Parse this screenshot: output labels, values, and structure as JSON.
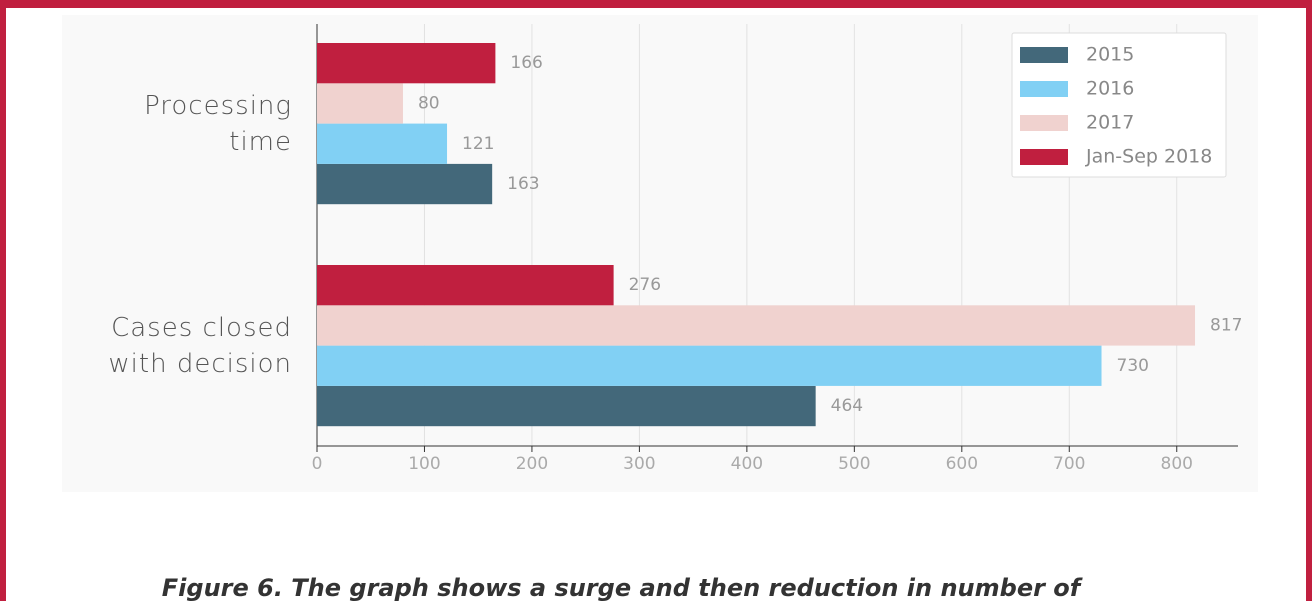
{
  "chart_data": {
    "type": "bar",
    "orientation": "horizontal",
    "categories": [
      "Processing time",
      "Cases closed with decision"
    ],
    "series": [
      {
        "name": "2015",
        "color": "#43687a",
        "values": [
          163,
          464
        ]
      },
      {
        "name": "2016",
        "color": "#81d0f4",
        "values": [
          121,
          730
        ]
      },
      {
        "name": "2017",
        "color": "#f0d2cf",
        "values": [
          80,
          817
        ]
      },
      {
        "name": "Jan-Sep 2018",
        "color": "#c01f3f",
        "values": [
          166,
          276
        ]
      }
    ],
    "xlim": [
      0,
      857
    ],
    "xticks": [
      0,
      100,
      200,
      300,
      400,
      500,
      600,
      700,
      800
    ],
    "grid": true,
    "legend": "top-right",
    "caption": "Figure 6. The graph shows a surge and then reduction in number of"
  }
}
